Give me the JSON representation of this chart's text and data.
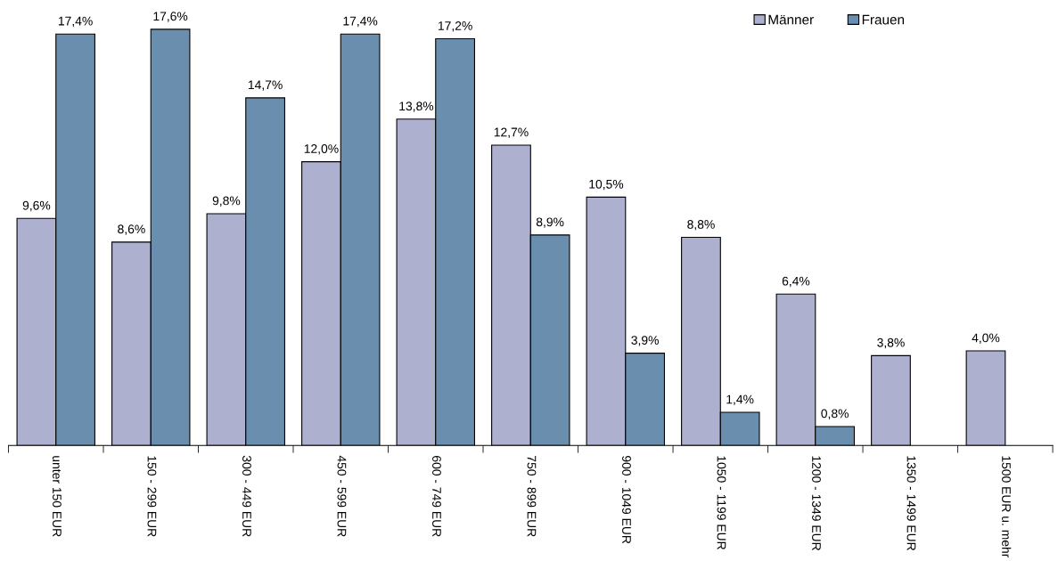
{
  "chart_data": {
    "type": "bar",
    "categories": [
      "unter 150 EUR",
      "150 - 299 EUR",
      "300 - 449 EUR",
      "450 - 599 EUR",
      "600 - 749 EUR",
      "750 - 899 EUR",
      "900 - 1049 EUR",
      "1050 - 1199 EUR",
      "1200 - 1349 EUR",
      "1350 - 1499 EUR",
      "1500 EUR u. mehr"
    ],
    "series": [
      {
        "name": "Männer",
        "color": "#aeb0cf",
        "values": [
          9.6,
          8.6,
          9.8,
          12.0,
          13.8,
          12.7,
          10.5,
          8.8,
          6.4,
          3.8,
          4.0
        ],
        "value_labels": [
          "9,6%",
          "8,6%",
          "9,8%",
          "12,0%",
          "13,8%",
          "12,7%",
          "10,5%",
          "8,8%",
          "6,4%",
          "3,8%",
          "4,0%"
        ]
      },
      {
        "name": "Frauen",
        "color": "#6a8fae",
        "values": [
          17.4,
          17.6,
          14.7,
          17.4,
          17.2,
          8.9,
          3.9,
          1.4,
          0.8,
          null,
          null
        ],
        "value_labels": [
          "17,4%",
          "17,6%",
          "14,7%",
          "17,4%",
          "17,2%",
          "8,9%",
          "3,9%",
          "1,4%",
          "0,8%",
          null,
          null
        ]
      }
    ],
    "legend": "top right",
    "grid": false,
    "tick_labels": "x"
  }
}
